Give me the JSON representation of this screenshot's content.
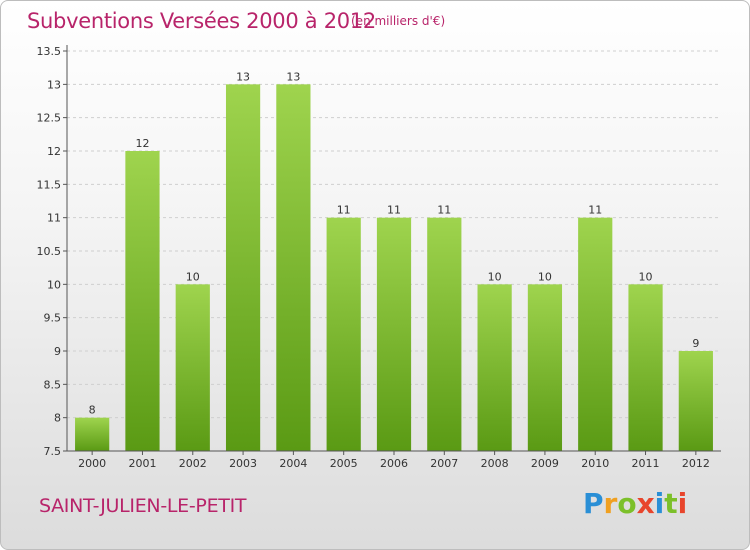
{
  "title": "Subventions Versées 2000 à 2012",
  "unit_note": "(en milliers d'€)",
  "place": "SAINT-JULIEN-LE-PETIT",
  "logo": {
    "letters": [
      "P",
      "r",
      "o",
      "x",
      "i",
      "t",
      "i"
    ],
    "colors": [
      "#2a8fd6",
      "#f0a020",
      "#7cc02a",
      "#e8452c",
      "#2a8fd6",
      "#7cc02a",
      "#e8452c"
    ]
  },
  "colors": {
    "bar_top": "#9fd44e",
    "bar_bottom": "#5a9a14",
    "grid": "#cfcfcf",
    "accent": "#b8246a"
  },
  "chart_data": {
    "type": "bar",
    "categories": [
      "2000",
      "2001",
      "2002",
      "2003",
      "2004",
      "2005",
      "2006",
      "2007",
      "2008",
      "2009",
      "2010",
      "2011",
      "2012"
    ],
    "values": [
      8,
      12,
      10,
      13,
      13,
      11,
      11,
      11,
      10,
      10,
      11,
      10,
      9
    ],
    "data_labels": [
      "8",
      "12",
      "10",
      "13",
      "13",
      "11",
      "11",
      "11",
      "10",
      "10",
      "11",
      "10",
      "9"
    ],
    "yticks": [
      7.5,
      8,
      8.5,
      9,
      9.5,
      10,
      10.5,
      11,
      11.5,
      12,
      12.5,
      13,
      13.5
    ],
    "ytick_labels": [
      "7.5",
      "8",
      "8.5",
      "9",
      "9.5",
      "10",
      "10.5",
      "11",
      "11.5",
      "12",
      "12.5",
      "13",
      "13.5"
    ],
    "ylim": [
      7.5,
      13.5
    ],
    "title": "Subventions Versées 2000 à 2012",
    "xlabel": "",
    "ylabel": "",
    "grid": true
  }
}
